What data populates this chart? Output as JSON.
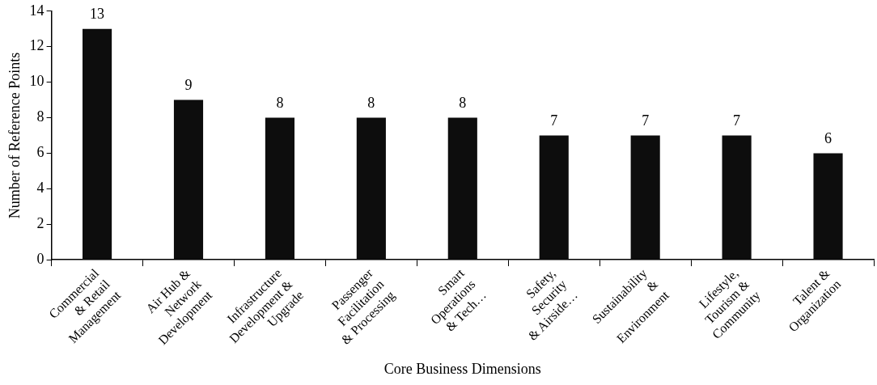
{
  "chart_data": {
    "type": "bar",
    "xlabel": "Core Business Dimensions",
    "ylabel": "Number of Reference Points",
    "categories": [
      "Commercial\n& Retail\nManagement",
      "Air Hub &\nNetwork\nDevelopment",
      "Infrastructure\nDevelopment &\nUpgrade",
      "Passenger\nFacilitation\n& Processing",
      "Smart\nOperations\n& Tech…",
      "Safety,\nSecurity\n& Airside…",
      "Sustainability\n&\nEnvironment",
      "Lifestyle,\nTourism &\nCommunity",
      "Talent &\nOrganization"
    ],
    "values": [
      13,
      9,
      8,
      8,
      8,
      7,
      7,
      7,
      6
    ],
    "color": "#0d0d0d",
    "ylim": [
      0,
      14
    ],
    "yticks": [
      0,
      2,
      4,
      6,
      8,
      10,
      12,
      14
    ],
    "grid": false,
    "legend": false,
    "data_labels": true
  }
}
